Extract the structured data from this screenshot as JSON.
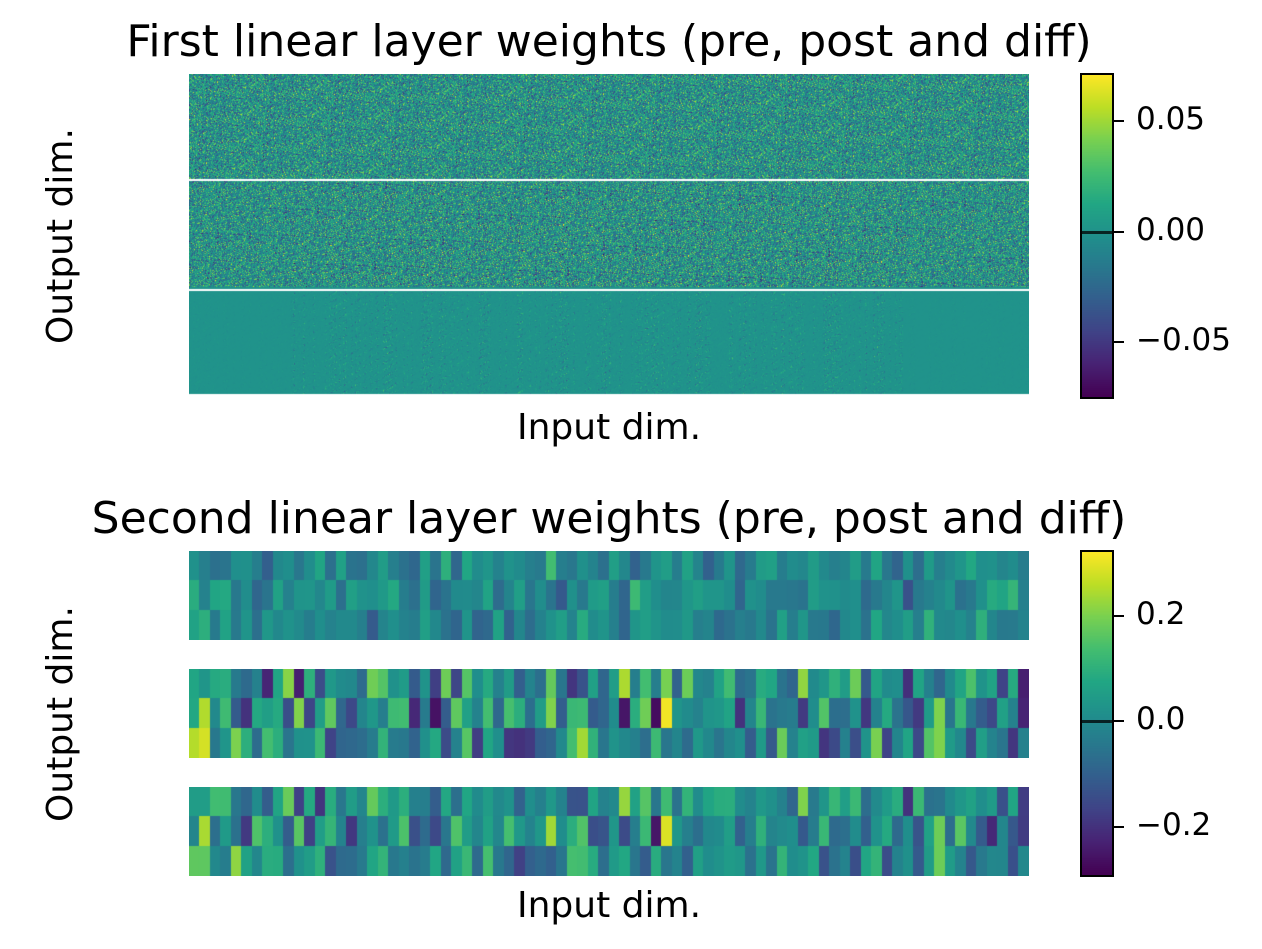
{
  "chart_data": [
    {
      "type": "heatmap",
      "title": "First linear layer weights (pre, post and diff)",
      "xlabel": "Input dim.",
      "ylabel": "Output dim.",
      "panels": [
        "pre",
        "post",
        "diff"
      ],
      "colormap": "viridis",
      "colorbar": {
        "vmin": -0.075,
        "vmax": 0.071,
        "ticks": [
          0.05,
          0.0,
          -0.05
        ],
        "tick_labels": [
          "0.05",
          "0.00",
          "−0.05"
        ],
        "marker_value": 0.0
      },
      "x_ticks_visible": false,
      "y_ticks_visible": false
    },
    {
      "type": "heatmap",
      "title": "Second linear layer weights (pre, post and diff)",
      "xlabel": "Input dim.",
      "ylabel": "Output dim.",
      "panels": [
        "pre",
        "post",
        "diff"
      ],
      "rows_per_panel": 3,
      "colormap": "viridis",
      "colorbar": {
        "vmin": -0.29,
        "vmax": 0.32,
        "ticks": [
          0.2,
          0.0,
          -0.2
        ],
        "tick_labels": [
          "0.2",
          "0.0",
          "−0.2"
        ],
        "marker_value": 0.0
      },
      "x_ticks_visible": false,
      "y_ticks_visible": false
    }
  ]
}
